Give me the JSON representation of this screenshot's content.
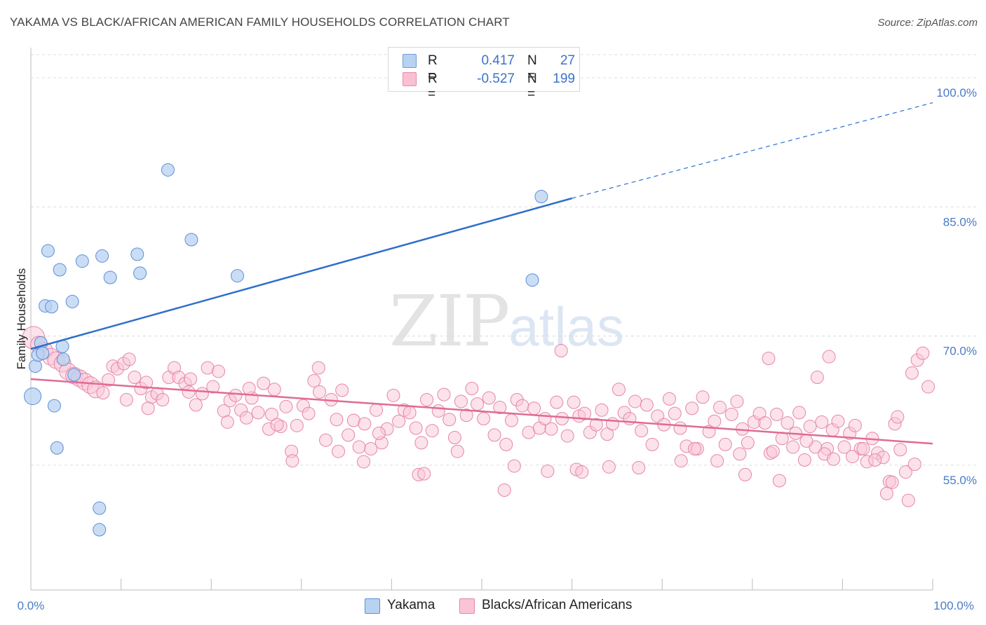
{
  "title": "YAKAMA VS BLACK/AFRICAN AMERICAN FAMILY HOUSEHOLDS CORRELATION CHART",
  "source": "Source: ZipAtlas.com",
  "watermark": {
    "zip": "ZIP",
    "atlas": "atlas"
  },
  "legend": {
    "r_label": "R =",
    "n_label": "N =",
    "rows": [
      {
        "r": "0.417",
        "n": "27",
        "fill": "#b8d2f2",
        "stroke": "#6f9ad6"
      },
      {
        "r": "-0.527",
        "n": "199",
        "fill": "#f9c0d2",
        "stroke": "#e48aaa"
      }
    ]
  },
  "colors": {
    "yakama_fill": "#b8d2f2",
    "yakama_stroke": "#5b8fd6",
    "yakama_line": "#2e6fcc",
    "black_fill": "#f9c5d6",
    "black_stroke": "#e586a8",
    "black_line": "#e06a97",
    "grid": "#dcdcdc",
    "tick_text": "#4a7cc7"
  },
  "chart_data": {
    "type": "scatter",
    "title": "YAKAMA VS BLACK/AFRICAN AMERICAN FAMILY HOUSEHOLDS CORRELATION CHART",
    "xlabel": "",
    "ylabel": "Family Households",
    "xlim": [
      0,
      100
    ],
    "ylim": [
      40.5,
      103.5
    ],
    "x_tick_labels": [
      "0.0%",
      "100.0%"
    ],
    "y_ticks": [
      55,
      70,
      85,
      100
    ],
    "y_tick_labels": [
      "55.0%",
      "70.0%",
      "85.0%",
      "100.0%"
    ],
    "grid": "horizontal dashed",
    "legend_position": "top-center",
    "series": [
      {
        "name": "Yakama",
        "points": [
          [
            0.2,
            63.0,
            2
          ],
          [
            0.5,
            66.5,
            1
          ],
          [
            0.8,
            67.8,
            1
          ],
          [
            1.1,
            69.2,
            1
          ],
          [
            1.3,
            68.0,
            1
          ],
          [
            1.6,
            73.5,
            1
          ],
          [
            1.9,
            79.9,
            1
          ],
          [
            2.3,
            73.4,
            1
          ],
          [
            2.6,
            61.9,
            1
          ],
          [
            2.9,
            57.0,
            1
          ],
          [
            3.2,
            77.7,
            1
          ],
          [
            3.5,
            68.8,
            1
          ],
          [
            3.6,
            67.3,
            1
          ],
          [
            4.6,
            74.0,
            1
          ],
          [
            4.8,
            65.5,
            1
          ],
          [
            5.7,
            78.7,
            1
          ],
          [
            7.6,
            50.0,
            1
          ],
          [
            7.6,
            47.5,
            1
          ],
          [
            7.9,
            79.3,
            1
          ],
          [
            8.8,
            76.8,
            1
          ],
          [
            11.8,
            79.5,
            1
          ],
          [
            12.1,
            77.3,
            1
          ],
          [
            15.2,
            89.3,
            1
          ],
          [
            17.8,
            81.2,
            1
          ],
          [
            22.9,
            77.0,
            1
          ],
          [
            55.6,
            76.5,
            1
          ],
          [
            56.6,
            86.2,
            1
          ]
        ]
      },
      {
        "name": "Blacks/African Americans",
        "points": [
          [
            0.3,
            69.8,
            3
          ],
          [
            0.9,
            69.0,
            2
          ],
          [
            1.5,
            68.3,
            2
          ],
          [
            2.2,
            67.6,
            2
          ],
          [
            2.8,
            67.2,
            2
          ],
          [
            3.5,
            66.8,
            2
          ],
          [
            4.1,
            65.9,
            2
          ],
          [
            4.8,
            65.4,
            2
          ],
          [
            5.4,
            65.1,
            2
          ],
          [
            6.0,
            64.7,
            2
          ],
          [
            6.6,
            64.3,
            2
          ],
          [
            7.2,
            63.8,
            2
          ],
          [
            8.0,
            63.4,
            1
          ],
          [
            8.6,
            64.9,
            1
          ],
          [
            9.1,
            66.5,
            1
          ],
          [
            9.6,
            66.2,
            1
          ],
          [
            10.3,
            66.8,
            1
          ],
          [
            10.9,
            67.3,
            1
          ],
          [
            11.5,
            65.2,
            1
          ],
          [
            12.2,
            63.9,
            1
          ],
          [
            12.8,
            64.6,
            1
          ],
          [
            13.4,
            62.9,
            1
          ],
          [
            14.0,
            63.3,
            1
          ],
          [
            14.6,
            62.6,
            1
          ],
          [
            15.3,
            65.2,
            1
          ],
          [
            15.9,
            66.3,
            1
          ],
          [
            16.4,
            65.2,
            1
          ],
          [
            17.1,
            64.5,
            1
          ],
          [
            17.7,
            65.0,
            1
          ],
          [
            18.3,
            62.0,
            1
          ],
          [
            19.0,
            63.3,
            1
          ],
          [
            19.6,
            66.3,
            1
          ],
          [
            20.2,
            64.1,
            1
          ],
          [
            20.8,
            65.9,
            1
          ],
          [
            21.4,
            61.3,
            1
          ],
          [
            22.1,
            62.5,
            1
          ],
          [
            22.7,
            63.1,
            1
          ],
          [
            23.3,
            61.4,
            1
          ],
          [
            23.9,
            60.5,
            1
          ],
          [
            24.5,
            62.8,
            1
          ],
          [
            25.2,
            61.1,
            1
          ],
          [
            25.8,
            64.5,
            1
          ],
          [
            26.4,
            59.2,
            1
          ],
          [
            27.0,
            63.8,
            1
          ],
          [
            27.7,
            59.5,
            1
          ],
          [
            28.3,
            61.8,
            1
          ],
          [
            28.9,
            56.6,
            1
          ],
          [
            29.5,
            59.6,
            1
          ],
          [
            30.2,
            61.9,
            1
          ],
          [
            30.8,
            61.0,
            1
          ],
          [
            31.4,
            64.8,
            1
          ],
          [
            32.0,
            63.5,
            1
          ],
          [
            32.7,
            57.9,
            1
          ],
          [
            33.3,
            62.6,
            1
          ],
          [
            33.9,
            60.3,
            1
          ],
          [
            34.5,
            63.7,
            1
          ],
          [
            35.2,
            58.5,
            1
          ],
          [
            35.8,
            60.2,
            1
          ],
          [
            36.4,
            57.1,
            1
          ],
          [
            37.0,
            59.8,
            1
          ],
          [
            37.7,
            56.9,
            1
          ],
          [
            38.3,
            61.4,
            1
          ],
          [
            38.9,
            57.6,
            1
          ],
          [
            39.5,
            59.2,
            1
          ],
          [
            40.2,
            63.1,
            1
          ],
          [
            40.8,
            60.1,
            1
          ],
          [
            41.4,
            61.4,
            1
          ],
          [
            42.0,
            61.1,
            1
          ],
          [
            42.7,
            59.3,
            1
          ],
          [
            43.3,
            57.6,
            1
          ],
          [
            43.9,
            62.6,
            1
          ],
          [
            44.5,
            59.0,
            1
          ],
          [
            45.2,
            61.3,
            1
          ],
          [
            45.8,
            63.2,
            1
          ],
          [
            46.4,
            60.3,
            1
          ],
          [
            47.0,
            58.2,
            1
          ],
          [
            47.7,
            62.4,
            1
          ],
          [
            48.3,
            60.8,
            1
          ],
          [
            48.9,
            63.9,
            1
          ],
          [
            49.5,
            62.1,
            1
          ],
          [
            50.2,
            60.4,
            1
          ],
          [
            50.8,
            62.8,
            1
          ],
          [
            51.4,
            58.5,
            1
          ],
          [
            52.0,
            61.7,
            1
          ],
          [
            52.7,
            57.4,
            1
          ],
          [
            53.3,
            60.2,
            1
          ],
          [
            53.9,
            62.6,
            1
          ],
          [
            54.5,
            61.9,
            1
          ],
          [
            55.2,
            58.8,
            1
          ],
          [
            55.8,
            61.6,
            1
          ],
          [
            56.4,
            59.3,
            1
          ],
          [
            57.0,
            60.4,
            1
          ],
          [
            57.7,
            59.2,
            1
          ],
          [
            58.3,
            62.3,
            1
          ],
          [
            58.9,
            60.4,
            1
          ],
          [
            59.5,
            58.4,
            1
          ],
          [
            60.2,
            62.3,
            1
          ],
          [
            60.8,
            60.7,
            1
          ],
          [
            61.4,
            61.0,
            1
          ],
          [
            62.0,
            58.8,
            1
          ],
          [
            62.7,
            59.7,
            1
          ],
          [
            63.3,
            61.4,
            1
          ],
          [
            63.9,
            58.6,
            1
          ],
          [
            64.5,
            59.8,
            1
          ],
          [
            65.2,
            63.8,
            1
          ],
          [
            65.8,
            61.1,
            1
          ],
          [
            66.4,
            60.4,
            1
          ],
          [
            67.0,
            62.4,
            1
          ],
          [
            67.7,
            59.0,
            1
          ],
          [
            68.3,
            62.0,
            1
          ],
          [
            68.9,
            57.4,
            1
          ],
          [
            69.5,
            60.7,
            1
          ],
          [
            70.2,
            59.7,
            1
          ],
          [
            70.8,
            62.7,
            1
          ],
          [
            71.4,
            61.0,
            1
          ],
          [
            72.0,
            59.3,
            1
          ],
          [
            72.7,
            57.2,
            1
          ],
          [
            73.3,
            61.6,
            1
          ],
          [
            73.9,
            56.9,
            1
          ],
          [
            74.5,
            62.9,
            1
          ],
          [
            75.2,
            58.9,
            1
          ],
          [
            75.8,
            60.1,
            1
          ],
          [
            76.4,
            61.7,
            1
          ],
          [
            77.0,
            57.4,
            1
          ],
          [
            77.7,
            60.9,
            1
          ],
          [
            78.3,
            62.4,
            1
          ],
          [
            78.9,
            59.2,
            1
          ],
          [
            79.5,
            57.6,
            1
          ],
          [
            80.2,
            60.0,
            1
          ],
          [
            80.8,
            61.0,
            1
          ],
          [
            81.4,
            59.9,
            1
          ],
          [
            82.0,
            56.4,
            1
          ],
          [
            82.7,
            60.9,
            1
          ],
          [
            83.3,
            58.1,
            1
          ],
          [
            83.9,
            59.9,
            1
          ],
          [
            84.5,
            57.1,
            1
          ],
          [
            85.2,
            61.1,
            1
          ],
          [
            85.8,
            55.6,
            1
          ],
          [
            86.4,
            59.5,
            1
          ],
          [
            87.0,
            57.1,
            1
          ],
          [
            87.7,
            60.0,
            1
          ],
          [
            88.3,
            56.9,
            1
          ],
          [
            88.9,
            59.1,
            1
          ],
          [
            89.5,
            60.1,
            1
          ],
          [
            90.2,
            57.1,
            1
          ],
          [
            90.8,
            58.7,
            1
          ],
          [
            91.4,
            59.6,
            1
          ],
          [
            92.0,
            56.9,
            1
          ],
          [
            92.7,
            55.4,
            1
          ],
          [
            93.3,
            58.1,
            1
          ],
          [
            93.9,
            56.4,
            1
          ],
          [
            94.5,
            55.9,
            1
          ],
          [
            95.2,
            53.1,
            1
          ],
          [
            95.8,
            59.8,
            1
          ],
          [
            96.4,
            56.8,
            1
          ],
          [
            97.0,
            54.2,
            1
          ],
          [
            97.7,
            65.7,
            1
          ],
          [
            98.3,
            67.2,
            1
          ],
          [
            98.9,
            68.0,
            1
          ],
          [
            99.5,
            64.1,
            1
          ],
          [
            10.6,
            62.6,
            1
          ],
          [
            13.0,
            61.6,
            1
          ],
          [
            17.5,
            63.5,
            1
          ],
          [
            24.2,
            63.9,
            1
          ],
          [
            26.7,
            60.9,
            1
          ],
          [
            29.0,
            55.5,
            1
          ],
          [
            31.9,
            66.3,
            1
          ],
          [
            34.1,
            56.6,
            1
          ],
          [
            36.9,
            55.4,
            1
          ],
          [
            38.6,
            58.7,
            1
          ],
          [
            43.0,
            53.9,
            1
          ],
          [
            43.6,
            54.0,
            1
          ],
          [
            47.3,
            56.6,
            1
          ],
          [
            52.5,
            52.1,
            1
          ],
          [
            53.6,
            54.9,
            1
          ],
          [
            57.3,
            54.3,
            1
          ],
          [
            60.5,
            54.5,
            1
          ],
          [
            61.1,
            54.2,
            1
          ],
          [
            64.1,
            54.8,
            1
          ],
          [
            67.4,
            54.7,
            1
          ],
          [
            72.1,
            55.5,
            1
          ],
          [
            73.6,
            56.9,
            1
          ],
          [
            76.1,
            55.5,
            1
          ],
          [
            78.6,
            56.3,
            1
          ],
          [
            79.2,
            53.9,
            1
          ],
          [
            82.3,
            56.6,
            1
          ],
          [
            83.0,
            53.2,
            1
          ],
          [
            84.8,
            58.7,
            1
          ],
          [
            86.0,
            57.8,
            1
          ],
          [
            88.0,
            56.3,
            1
          ],
          [
            89.0,
            55.7,
            1
          ],
          [
            91.1,
            56.0,
            1
          ],
          [
            92.3,
            56.9,
            1
          ],
          [
            93.6,
            55.6,
            1
          ],
          [
            94.9,
            51.7,
            1
          ],
          [
            95.5,
            53.0,
            1
          ],
          [
            96.1,
            60.6,
            1
          ],
          [
            97.3,
            50.9,
            1
          ],
          [
            98.0,
            55.1,
            1
          ],
          [
            81.8,
            67.4,
            1
          ],
          [
            87.2,
            65.2,
            1
          ],
          [
            88.5,
            67.6,
            1
          ],
          [
            58.8,
            68.3,
            1
          ],
          [
            21.8,
            60.0,
            1
          ],
          [
            27.3,
            59.7,
            1
          ]
        ]
      }
    ],
    "trend_lines": [
      {
        "series": "Yakama",
        "x0": 0,
        "y0": 68.5,
        "x1": 60.0,
        "y1": 86.0,
        "dashed_to_x": 100,
        "dashed_to_y": 97.1
      },
      {
        "series": "Blacks/African Americans",
        "x0": 0,
        "y0": 65.0,
        "x1": 100,
        "y1": 57.5
      }
    ]
  }
}
